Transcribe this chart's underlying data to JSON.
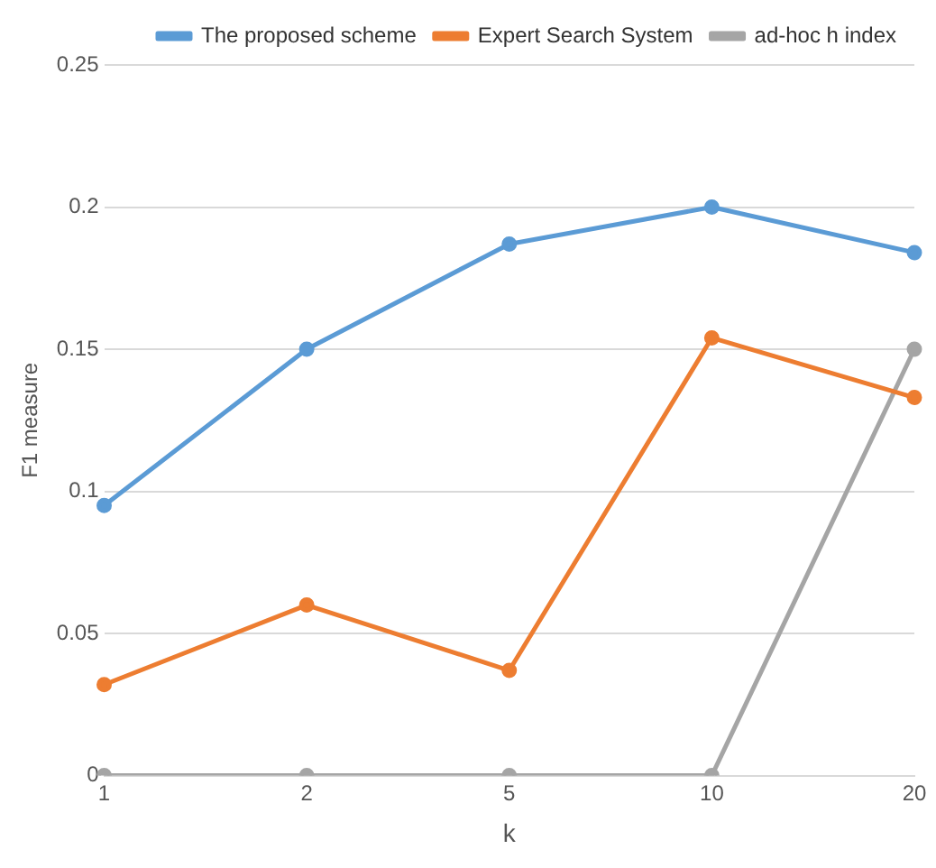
{
  "chart_data": {
    "type": "line",
    "xlabel": "k",
    "ylabel": "F1 measure",
    "categories": [
      "1",
      "2",
      "5",
      "10",
      "20"
    ],
    "series": [
      {
        "name": "The proposed scheme",
        "color": "#5b9bd5",
        "values": [
          0.095,
          0.15,
          0.187,
          0.2,
          0.184
        ]
      },
      {
        "name": "Expert Search System",
        "color": "#ed7d31",
        "values": [
          0.032,
          0.06,
          0.037,
          0.154,
          0.133
        ]
      },
      {
        "name": "ad-hoc h index",
        "color": "#a5a5a5",
        "values": [
          0,
          0,
          0,
          0,
          0.15
        ]
      }
    ],
    "ylim": [
      0,
      0.25
    ],
    "yticks": [
      0,
      0.05,
      0.1,
      0.15,
      0.2,
      0.25
    ],
    "grid": "y",
    "legend": "top right",
    "marker": "circle",
    "line_style": "solid"
  }
}
